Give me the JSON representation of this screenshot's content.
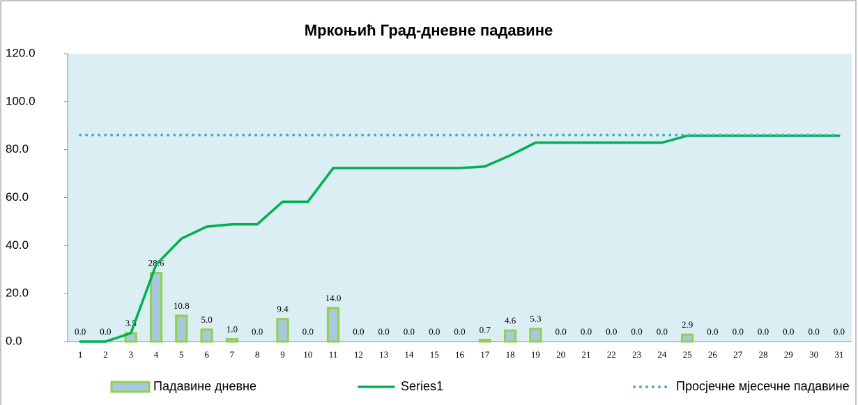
{
  "chart_data": {
    "type": "combo",
    "title": "Мркоњић Град-дневне падавине",
    "categories": [
      "1",
      "2",
      "3",
      "4",
      "5",
      "6",
      "7",
      "8",
      "9",
      "10",
      "11",
      "12",
      "13",
      "14",
      "15",
      "16",
      "17",
      "18",
      "19",
      "20",
      "21",
      "22",
      "23",
      "24",
      "25",
      "26",
      "27",
      "28",
      "29",
      "30",
      "31"
    ],
    "ylim": [
      0,
      120
    ],
    "yticks": [
      {
        "value": 0,
        "label": "0.0"
      },
      {
        "value": 20,
        "label": "20.0"
      },
      {
        "value": 40,
        "label": "40.0"
      },
      {
        "value": 60,
        "label": "60.0"
      },
      {
        "value": 80,
        "label": "80.0"
      },
      {
        "value": 100,
        "label": "100.0"
      },
      {
        "value": 120,
        "label": "120.0"
      }
    ],
    "grid": false,
    "legend": "bottom",
    "series": [
      {
        "name": "Падавине дневне",
        "type": "bar",
        "color": "#a8c8dc",
        "edge_color": "#92d050",
        "values": [
          0,
          0,
          3.5,
          28.6,
          10.8,
          5,
          1,
          0,
          9.4,
          0,
          14,
          0,
          0,
          0,
          0,
          0,
          0.7,
          4.6,
          5.3,
          0,
          0,
          0,
          0,
          0,
          2.9,
          0,
          0,
          0,
          0,
          0,
          0
        ],
        "value_labels": [
          "0.0",
          "0.0",
          "3.5",
          "28.6",
          "10.8",
          "5.0",
          "1.0",
          "0.0",
          "9.4",
          "0.0",
          "14.0",
          "0.0",
          "0.0",
          "0.0",
          "0.0",
          "0.0",
          "0.7",
          "4.6",
          "5.3",
          "0.0",
          "0.0",
          "0.0",
          "0.0",
          "0.0",
          "2.9",
          "0.0",
          "0.0",
          "0.0",
          "0.0",
          "0.0",
          "0.0"
        ]
      },
      {
        "name": "Series1",
        "type": "line",
        "color": "#00b050",
        "values": [
          0,
          0,
          3.5,
          32.1,
          42.9,
          47.9,
          48.9,
          48.9,
          58.3,
          58.3,
          72.3,
          72.3,
          72.3,
          72.3,
          72.3,
          72.3,
          73,
          77.6,
          82.9,
          82.9,
          82.9,
          82.9,
          82.9,
          82.9,
          85.8,
          85.8,
          85.8,
          85.8,
          85.8,
          85.8,
          85.8
        ]
      },
      {
        "name": "Просјечне мјесечне падавине",
        "type": "line",
        "dotted": true,
        "color": "#4bacc6",
        "values": [
          86.1,
          86.1,
          86.1,
          86.1,
          86.1,
          86.1,
          86.1,
          86.1,
          86.1,
          86.1,
          86.1,
          86.1,
          86.1,
          86.1,
          86.1,
          86.1,
          86.1,
          86.1,
          86.1,
          86.1,
          86.1,
          86.1,
          86.1,
          86.1,
          86.1,
          86.1,
          86.1,
          86.1,
          86.1,
          86.1,
          86.1
        ]
      }
    ]
  }
}
